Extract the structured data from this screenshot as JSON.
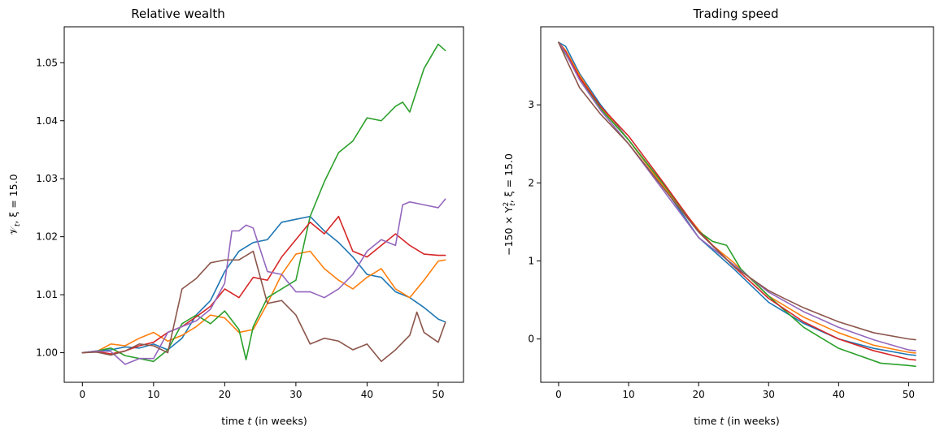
{
  "chart_data": [
    {
      "type": "line",
      "title": "Relative wealth",
      "xlabel_parts": [
        "time ",
        "t",
        " (in weeks)"
      ],
      "ylabel_parts": [
        "𝒱",
        "t",
        ", ξ = 15.0"
      ],
      "xlim": [
        -2.55,
        53.55
      ],
      "ylim": [
        0.9949,
        1.0562
      ],
      "xticks": [
        0,
        10,
        20,
        30,
        40,
        50
      ],
      "xtick_labels": [
        "0",
        "10",
        "20",
        "30",
        "40",
        "50"
      ],
      "yticks": [
        1.0,
        1.01,
        1.02,
        1.03,
        1.04,
        1.05
      ],
      "ytick_labels": [
        "1.00",
        "1.01",
        "1.02",
        "1.03",
        "1.04",
        "1.05"
      ],
      "series": [
        {
          "color": "#1f77b4",
          "x": [
            0,
            2,
            4,
            6,
            8,
            10,
            12,
            14,
            16,
            18,
            20,
            22,
            24,
            26,
            28,
            30,
            32,
            34,
            36,
            38,
            40,
            42,
            44,
            46,
            48,
            50,
            51
          ],
          "y": [
            1.0,
            1.0003,
            1.0005,
            1.001,
            1.0008,
            1.0015,
            1.0005,
            1.0025,
            1.0065,
            1.009,
            1.014,
            1.0175,
            1.019,
            1.0195,
            1.0225,
            1.023,
            1.0235,
            1.021,
            1.019,
            1.0165,
            1.0135,
            1.013,
            1.0105,
            1.0095,
            1.0078,
            1.0058,
            1.0053
          ]
        },
        {
          "color": "#ff7f0e",
          "x": [
            0,
            2,
            4,
            6,
            8,
            10,
            12,
            14,
            16,
            18,
            20,
            22,
            24,
            26,
            28,
            30,
            32,
            34,
            36,
            38,
            40,
            42,
            44,
            46,
            48,
            50,
            51
          ],
          "y": [
            1.0,
            1.0002,
            1.0015,
            1.0012,
            1.0025,
            1.0035,
            1.002,
            1.003,
            1.0045,
            1.0065,
            1.006,
            1.0035,
            1.004,
            1.0085,
            1.0135,
            1.017,
            1.0175,
            1.0145,
            1.0125,
            1.011,
            1.013,
            1.0145,
            1.011,
            1.0095,
            1.0125,
            1.0158,
            1.016
          ]
        },
        {
          "color": "#2ca02c",
          "x": [
            0,
            2,
            4,
            6,
            8,
            10,
            12,
            14,
            16,
            18,
            20,
            22,
            23,
            24,
            26,
            28,
            30,
            32,
            34,
            36,
            38,
            40,
            42,
            44,
            45,
            46,
            48,
            50,
            51
          ],
          "y": [
            1.0,
            1.0003,
            1.0008,
            0.9995,
            0.999,
            0.9985,
            1.0005,
            1.005,
            1.0065,
            1.005,
            1.0072,
            1.004,
            0.9988,
            1.0045,
            1.0095,
            1.011,
            1.0125,
            1.0235,
            1.0295,
            1.0345,
            1.0365,
            1.0405,
            1.04,
            1.0425,
            1.0432,
            1.0415,
            1.049,
            1.0532,
            1.0521
          ]
        },
        {
          "color": "#d62728",
          "x": [
            0,
            2,
            4,
            6,
            8,
            10,
            12,
            14,
            16,
            18,
            20,
            22,
            24,
            26,
            28,
            30,
            32,
            34,
            36,
            38,
            40,
            42,
            44,
            46,
            48,
            50,
            51
          ],
          "y": [
            1.0,
            1.0002,
            0.9998,
            1.0003,
            1.0012,
            1.0018,
            1.0035,
            1.0045,
            1.0062,
            1.008,
            1.011,
            1.0095,
            1.013,
            1.0125,
            1.0165,
            1.0195,
            1.0225,
            1.0205,
            1.0235,
            1.0175,
            1.0165,
            1.0185,
            1.0205,
            1.0185,
            1.017,
            1.0168,
            1.0168
          ]
        },
        {
          "color": "#9467bd",
          "x": [
            0,
            2,
            4,
            6,
            8,
            10,
            12,
            14,
            16,
            18,
            20,
            21,
            22,
            23,
            24,
            26,
            28,
            30,
            32,
            34,
            36,
            38,
            40,
            42,
            44,
            45,
            46,
            48,
            50,
            51
          ],
          "y": [
            1.0,
            1.0003,
            1.0002,
            0.998,
            0.999,
            0.999,
            1.0035,
            1.0045,
            1.0055,
            1.0075,
            1.012,
            1.021,
            1.021,
            1.022,
            1.0215,
            1.014,
            1.0135,
            1.0105,
            1.0105,
            1.0095,
            1.011,
            1.0135,
            1.0175,
            1.0195,
            1.0185,
            1.0255,
            1.026,
            1.0255,
            1.025,
            1.0265
          ]
        },
        {
          "color": "#8c564b",
          "x": [
            0,
            2,
            4,
            6,
            8,
            10,
            12,
            14,
            16,
            18,
            20,
            22,
            24,
            26,
            28,
            30,
            32,
            34,
            36,
            38,
            40,
            42,
            44,
            46,
            47,
            48,
            50,
            51
          ],
          "y": [
            1.0,
            1.0001,
            0.9996,
            1.0003,
            1.0015,
            1.0012,
            1.0,
            1.011,
            1.0128,
            1.0155,
            1.016,
            1.016,
            1.0175,
            1.0085,
            1.009,
            1.0065,
            1.0015,
            1.0025,
            1.002,
            1.0005,
            1.0015,
            0.9985,
            1.0005,
            1.003,
            1.007,
            1.0035,
            1.0018,
            1.0052
          ]
        }
      ]
    },
    {
      "type": "line",
      "title": "Trading speed",
      "xlabel_parts": [
        "time ",
        "t",
        " (in weeks)"
      ],
      "ylabel_parts": [
        "−150 × Y",
        "t",
        ", ξ = 15.0"
      ],
      "ylabel_super": "2",
      "xlim": [
        -2.55,
        53.55
      ],
      "ylim": [
        -0.555,
        4.0
      ],
      "xticks": [
        0,
        10,
        20,
        30,
        40,
        50
      ],
      "xtick_labels": [
        "0",
        "10",
        "20",
        "30",
        "40",
        "50"
      ],
      "yticks": [
        0,
        1,
        2,
        3
      ],
      "ytick_labels": [
        "0",
        "1",
        "2",
        "3"
      ],
      "series": [
        {
          "color": "#1f77b4",
          "x": [
            0,
            1,
            3,
            6,
            10,
            15,
            20,
            25,
            30,
            35,
            40,
            45,
            50,
            51
          ],
          "y": [
            3.8,
            3.75,
            3.4,
            3.0,
            2.55,
            1.95,
            1.3,
            0.9,
            0.47,
            0.2,
            0.0,
            -0.12,
            -0.2,
            -0.21
          ]
        },
        {
          "color": "#ff7f0e",
          "x": [
            0,
            1,
            3,
            6,
            10,
            15,
            20,
            22,
            25,
            30,
            35,
            40,
            45,
            50,
            51
          ],
          "y": [
            3.8,
            3.7,
            3.38,
            2.97,
            2.55,
            1.95,
            1.4,
            1.2,
            0.98,
            0.55,
            0.28,
            0.08,
            -0.08,
            -0.17,
            -0.18
          ]
        },
        {
          "color": "#2ca02c",
          "x": [
            0,
            1,
            3,
            6,
            10,
            15,
            20,
            22,
            24,
            26,
            30,
            35,
            40,
            46,
            50,
            51
          ],
          "y": [
            3.8,
            3.65,
            3.35,
            2.95,
            2.55,
            1.98,
            1.38,
            1.25,
            1.2,
            0.9,
            0.55,
            0.15,
            -0.12,
            -0.31,
            -0.34,
            -0.35
          ]
        },
        {
          "color": "#d62728",
          "x": [
            0,
            1,
            3,
            6,
            10,
            15,
            20,
            25,
            30,
            35,
            40,
            45,
            50,
            51
          ],
          "y": [
            3.8,
            3.68,
            3.35,
            2.98,
            2.6,
            2.0,
            1.38,
            0.93,
            0.52,
            0.22,
            0.0,
            -0.15,
            -0.26,
            -0.27
          ]
        },
        {
          "color": "#9467bd",
          "x": [
            0,
            1,
            3,
            6,
            10,
            15,
            20,
            25,
            30,
            35,
            40,
            45,
            50,
            51
          ],
          "y": [
            3.8,
            3.66,
            3.32,
            2.93,
            2.5,
            1.9,
            1.3,
            0.95,
            0.6,
            0.35,
            0.15,
            -0.01,
            -0.14,
            -0.15
          ]
        },
        {
          "color": "#8c564b",
          "x": [
            0,
            1,
            3,
            6,
            10,
            15,
            20,
            25,
            30,
            32,
            35,
            40,
            45,
            50,
            51
          ],
          "y": [
            3.8,
            3.6,
            3.22,
            2.88,
            2.5,
            1.93,
            1.37,
            0.93,
            0.62,
            0.53,
            0.4,
            0.22,
            0.08,
            0.0,
            -0.01
          ]
        }
      ]
    }
  ]
}
